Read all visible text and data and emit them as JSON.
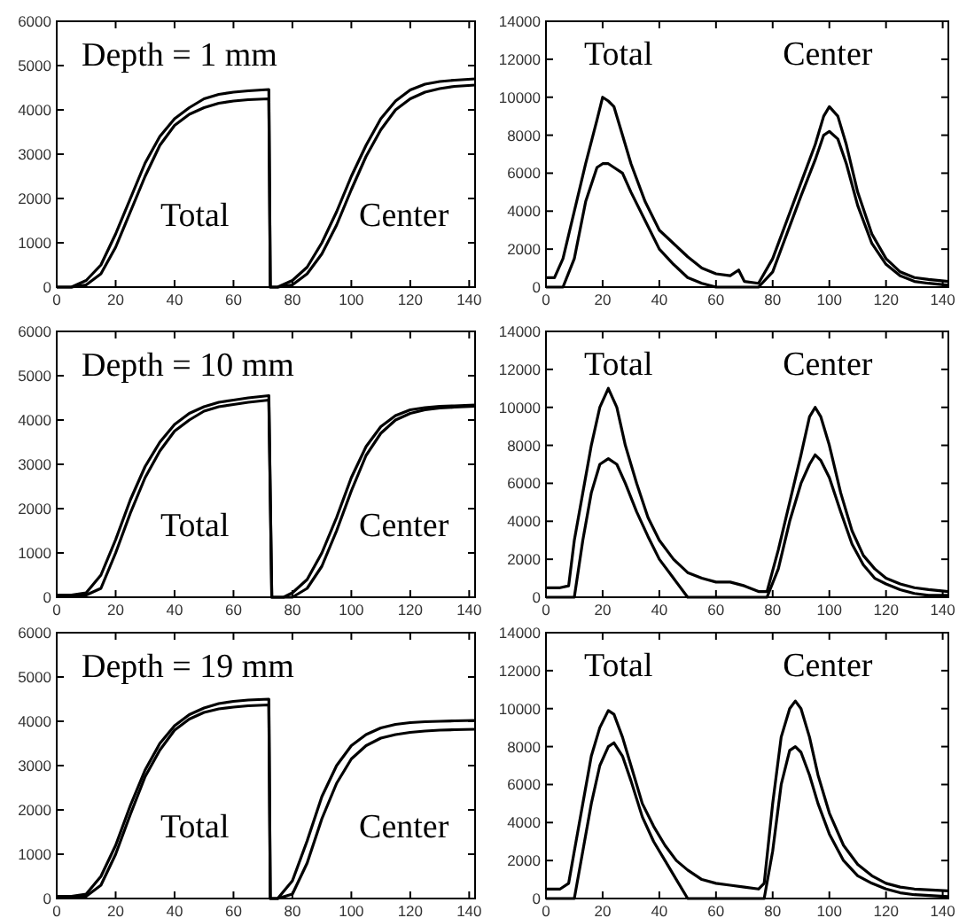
{
  "chart_data": [
    {
      "type": "line",
      "title": "Depth = 1 mm",
      "xlim": [
        0,
        142
      ],
      "ylim": [
        0,
        6000
      ],
      "xticks": [
        0,
        20,
        40,
        60,
        80,
        100,
        120,
        140
      ],
      "yticks": [
        0,
        1000,
        2000,
        3000,
        4000,
        5000,
        6000
      ],
      "line_style": "solid",
      "marker": "none",
      "series": [
        {
          "color": "#000000",
          "x": [
            0,
            5,
            10,
            15,
            20,
            25,
            30,
            35,
            40,
            45,
            50,
            55,
            60,
            65,
            72,
            72.5,
            75,
            80,
            85,
            90,
            95,
            100,
            105,
            110,
            115,
            120,
            125,
            130,
            135,
            142
          ],
          "values": [
            0,
            0,
            150,
            500,
            1200,
            2000,
            2800,
            3400,
            3800,
            4050,
            4250,
            4350,
            4400,
            4430,
            4460,
            0,
            0,
            150,
            450,
            1000,
            1700,
            2500,
            3200,
            3800,
            4200,
            4450,
            4580,
            4640,
            4670,
            4700
          ]
        },
        {
          "color": "#000000",
          "x": [
            0,
            5,
            10,
            15,
            20,
            25,
            30,
            35,
            40,
            45,
            50,
            55,
            60,
            65,
            72,
            72.5,
            75,
            80,
            85,
            90,
            95,
            100,
            105,
            110,
            115,
            120,
            125,
            130,
            135,
            142
          ],
          "values": [
            0,
            0,
            50,
            300,
            900,
            1700,
            2500,
            3200,
            3650,
            3900,
            4050,
            4150,
            4200,
            4230,
            4250,
            0,
            0,
            50,
            300,
            750,
            1400,
            2200,
            2950,
            3550,
            4000,
            4250,
            4400,
            4480,
            4530,
            4560
          ]
        }
      ],
      "annotations": [
        "Total",
        "Center"
      ]
    },
    {
      "type": "line",
      "xlim": [
        0,
        142
      ],
      "ylim": [
        0,
        14000
      ],
      "xticks": [
        0,
        20,
        40,
        60,
        80,
        100,
        120,
        140
      ],
      "yticks": [
        0,
        2000,
        4000,
        6000,
        8000,
        10000,
        12000,
        14000
      ],
      "line_style": "solid",
      "marker": "none",
      "series": [
        {
          "color": "#000000",
          "x": [
            0,
            3,
            6,
            10,
            14,
            18,
            20,
            22,
            24,
            27,
            30,
            35,
            40,
            45,
            50,
            55,
            60,
            65,
            68,
            70,
            75,
            80,
            85,
            90,
            95,
            98,
            100,
            103,
            106,
            110,
            115,
            120,
            125,
            130,
            135,
            142
          ],
          "values": [
            500,
            500,
            1500,
            4000,
            6500,
            8800,
            10000,
            9800,
            9500,
            8000,
            6500,
            4500,
            3000,
            2300,
            1600,
            1000,
            700,
            600,
            900,
            300,
            200,
            1500,
            3500,
            5500,
            7500,
            9000,
            9500,
            9000,
            7500,
            5000,
            2800,
            1500,
            800,
            500,
            400,
            300
          ]
        },
        {
          "color": "#000000",
          "x": [
            0,
            3,
            6,
            10,
            14,
            18,
            20,
            22,
            24,
            27,
            30,
            35,
            40,
            45,
            50,
            55,
            60,
            65,
            68,
            70,
            75,
            80,
            85,
            90,
            95,
            98,
            100,
            103,
            106,
            110,
            115,
            120,
            125,
            130,
            135,
            142
          ],
          "values": [
            0,
            0,
            0,
            1500,
            4500,
            6300,
            6500,
            6500,
            6300,
            6000,
            5000,
            3500,
            2000,
            1200,
            500,
            200,
            0,
            0,
            0,
            0,
            0,
            800,
            2800,
            4800,
            6700,
            8000,
            8200,
            7800,
            6500,
            4300,
            2300,
            1200,
            600,
            300,
            200,
            100
          ]
        }
      ],
      "annotations": [
        "Total",
        "Center"
      ]
    },
    {
      "type": "line",
      "title": "Depth = 10 mm",
      "xlim": [
        0,
        142
      ],
      "ylim": [
        0,
        6000
      ],
      "xticks": [
        0,
        20,
        40,
        60,
        80,
        100,
        120,
        140
      ],
      "yticks": [
        0,
        1000,
        2000,
        3000,
        4000,
        5000,
        6000
      ],
      "line_style": "solid",
      "marker": "none",
      "series": [
        {
          "color": "#000000",
          "x": [
            0,
            5,
            10,
            15,
            20,
            25,
            30,
            35,
            40,
            45,
            50,
            55,
            60,
            65,
            72,
            73,
            77,
            80,
            85,
            90,
            95,
            100,
            105,
            110,
            115,
            120,
            125,
            130,
            135,
            142
          ],
          "values": [
            50,
            50,
            100,
            500,
            1300,
            2200,
            2950,
            3500,
            3900,
            4150,
            4300,
            4400,
            4450,
            4500,
            4550,
            0,
            0,
            100,
            400,
            1000,
            1800,
            2700,
            3400,
            3850,
            4100,
            4230,
            4280,
            4310,
            4320,
            4340
          ]
        },
        {
          "color": "#000000",
          "x": [
            0,
            5,
            10,
            15,
            20,
            25,
            30,
            35,
            40,
            45,
            50,
            55,
            60,
            65,
            72,
            73,
            77,
            80,
            85,
            90,
            95,
            100,
            105,
            110,
            115,
            120,
            125,
            130,
            135,
            142
          ],
          "values": [
            50,
            50,
            50,
            200,
            1000,
            1900,
            2700,
            3300,
            3750,
            4000,
            4200,
            4300,
            4350,
            4400,
            4450,
            0,
            0,
            0,
            200,
            700,
            1500,
            2400,
            3200,
            3700,
            4000,
            4150,
            4230,
            4270,
            4290,
            4310
          ]
        }
      ],
      "annotations": [
        "Total",
        "Center"
      ]
    },
    {
      "type": "line",
      "xlim": [
        0,
        142
      ],
      "ylim": [
        0,
        14000
      ],
      "xticks": [
        0,
        20,
        40,
        60,
        80,
        100,
        120,
        140
      ],
      "yticks": [
        0,
        2000,
        4000,
        6000,
        8000,
        10000,
        12000,
        14000
      ],
      "line_style": "solid",
      "marker": "none",
      "series": [
        {
          "color": "#000000",
          "x": [
            0,
            5,
            8,
            10,
            13,
            16,
            19,
            22,
            25,
            28,
            32,
            36,
            40,
            45,
            50,
            55,
            60,
            65,
            70,
            75,
            78,
            82,
            86,
            90,
            93,
            95,
            97,
            100,
            104,
            108,
            112,
            116,
            120,
            125,
            130,
            135,
            142
          ],
          "values": [
            500,
            500,
            600,
            3000,
            5500,
            8000,
            10000,
            11000,
            10000,
            8000,
            6000,
            4200,
            3000,
            2000,
            1300,
            1000,
            800,
            800,
            600,
            300,
            300,
            2500,
            5000,
            7500,
            9500,
            10000,
            9500,
            8000,
            5500,
            3500,
            2200,
            1500,
            1000,
            700,
            500,
            400,
            300
          ]
        },
        {
          "color": "#000000",
          "x": [
            0,
            5,
            8,
            10,
            13,
            16,
            19,
            22,
            25,
            28,
            32,
            36,
            40,
            45,
            50,
            55,
            60,
            65,
            70,
            75,
            78,
            82,
            86,
            90,
            93,
            95,
            97,
            100,
            104,
            108,
            112,
            116,
            120,
            125,
            130,
            135,
            142
          ],
          "values": [
            0,
            0,
            0,
            0,
            3000,
            5500,
            7000,
            7300,
            7000,
            6000,
            4500,
            3200,
            2000,
            1000,
            0,
            0,
            0,
            0,
            0,
            0,
            0,
            1500,
            4000,
            6000,
            7000,
            7500,
            7200,
            6300,
            4500,
            2800,
            1700,
            1000,
            700,
            400,
            200,
            100,
            100
          ]
        }
      ],
      "annotations": [
        "Total",
        "Center"
      ]
    },
    {
      "type": "line",
      "title": "Depth = 19 mm",
      "xlim": [
        0,
        142
      ],
      "ylim": [
        0,
        6000
      ],
      "xticks": [
        0,
        20,
        40,
        60,
        80,
        100,
        120,
        140
      ],
      "yticks": [
        0,
        1000,
        2000,
        3000,
        4000,
        5000,
        6000
      ],
      "line_style": "solid",
      "marker": "none",
      "series": [
        {
          "color": "#000000",
          "x": [
            0,
            5,
            10,
            15,
            20,
            25,
            30,
            35,
            40,
            45,
            50,
            55,
            60,
            65,
            72,
            72.5,
            75,
            80,
            85,
            90,
            95,
            100,
            105,
            110,
            115,
            120,
            125,
            130,
            135,
            142
          ],
          "values": [
            50,
            50,
            100,
            500,
            1200,
            2100,
            2900,
            3500,
            3900,
            4150,
            4300,
            4400,
            4450,
            4480,
            4500,
            0,
            0,
            400,
            1300,
            2300,
            3000,
            3450,
            3700,
            3850,
            3930,
            3970,
            3990,
            4000,
            4010,
            4020
          ]
        },
        {
          "color": "#000000",
          "x": [
            0,
            5,
            10,
            15,
            20,
            25,
            30,
            35,
            40,
            45,
            50,
            55,
            60,
            65,
            72,
            72.5,
            75,
            80,
            85,
            90,
            95,
            100,
            105,
            110,
            115,
            120,
            125,
            130,
            135,
            142
          ],
          "values": [
            50,
            50,
            50,
            300,
            1000,
            1900,
            2750,
            3350,
            3800,
            4050,
            4200,
            4280,
            4320,
            4350,
            4370,
            0,
            0,
            100,
            800,
            1800,
            2600,
            3150,
            3450,
            3620,
            3700,
            3750,
            3780,
            3800,
            3810,
            3820
          ]
        }
      ],
      "annotations": [
        "Total",
        "Center"
      ]
    },
    {
      "type": "line",
      "xlim": [
        0,
        142
      ],
      "ylim": [
        0,
        14000
      ],
      "xticks": [
        0,
        20,
        40,
        60,
        80,
        100,
        120,
        140
      ],
      "yticks": [
        0,
        2000,
        4000,
        6000,
        8000,
        10000,
        12000,
        14000
      ],
      "line_style": "solid",
      "marker": "none",
      "series": [
        {
          "color": "#000000",
          "x": [
            0,
            5,
            8,
            10,
            13,
            16,
            19,
            22,
            24,
            27,
            30,
            34,
            38,
            42,
            46,
            50,
            55,
            60,
            65,
            70,
            75,
            77,
            80,
            83,
            86,
            88,
            90,
            93,
            96,
            100,
            105,
            110,
            115,
            120,
            125,
            130,
            142
          ],
          "values": [
            500,
            500,
            800,
            2500,
            5000,
            7500,
            9000,
            9900,
            9700,
            8500,
            7000,
            5000,
            3800,
            2800,
            2000,
            1500,
            1000,
            800,
            700,
            600,
            500,
            800,
            5000,
            8500,
            10000,
            10400,
            10000,
            8500,
            6500,
            4500,
            2800,
            1800,
            1200,
            800,
            600,
            500,
            400
          ]
        },
        {
          "color": "#000000",
          "x": [
            0,
            5,
            8,
            10,
            13,
            16,
            19,
            22,
            24,
            27,
            30,
            34,
            38,
            42,
            46,
            50,
            55,
            60,
            65,
            70,
            75,
            77,
            80,
            83,
            86,
            88,
            90,
            93,
            96,
            100,
            105,
            110,
            115,
            120,
            125,
            130,
            142
          ],
          "values": [
            0,
            0,
            0,
            0,
            2500,
            5000,
            7000,
            8000,
            8200,
            7500,
            6200,
            4300,
            3000,
            2000,
            1000,
            0,
            0,
            0,
            0,
            0,
            0,
            0,
            2500,
            6000,
            7800,
            8000,
            7700,
            6500,
            5000,
            3400,
            2000,
            1200,
            800,
            500,
            300,
            200,
            100
          ]
        }
      ],
      "annotations": [
        "Total",
        "Center"
      ]
    }
  ]
}
